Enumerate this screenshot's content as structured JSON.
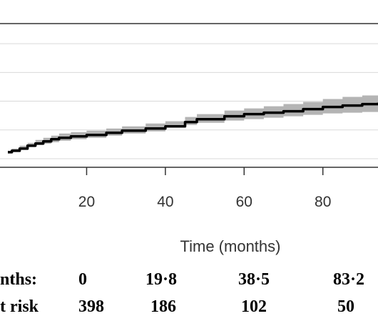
{
  "chart_data": {
    "type": "line",
    "title": "",
    "xlabel": "Time (months)",
    "ylabel": "",
    "xlim": [
      -2,
      94
    ],
    "ylim": [
      0,
      1
    ],
    "x_ticks": [
      20,
      40,
      60,
      80
    ],
    "x_tick_labels": [
      "20",
      "40",
      "60",
      "80"
    ],
    "grid": "horizontal",
    "y_gridlines": [
      0.06,
      0.26,
      0.46,
      0.66,
      0.86
    ],
    "series": [
      {
        "x": [
          0,
          1,
          3,
          5,
          7,
          9,
          11,
          13,
          16,
          20,
          25,
          29,
          35,
          40,
          45,
          48,
          55,
          60,
          65,
          70,
          75,
          80,
          85,
          90,
          94
        ],
        "y": [
          0.105,
          0.115,
          0.13,
          0.15,
          0.165,
          0.18,
          0.195,
          0.205,
          0.215,
          0.225,
          0.24,
          0.255,
          0.27,
          0.285,
          0.315,
          0.335,
          0.355,
          0.37,
          0.38,
          0.39,
          0.405,
          0.42,
          0.43,
          0.44,
          0.45
        ],
        "ci_lower": [
          0.095,
          0.1,
          0.11,
          0.125,
          0.14,
          0.155,
          0.165,
          0.175,
          0.185,
          0.195,
          0.205,
          0.22,
          0.235,
          0.25,
          0.28,
          0.295,
          0.31,
          0.325,
          0.335,
          0.345,
          0.355,
          0.365,
          0.375,
          0.38,
          0.385
        ],
        "ci_upper": [
          0.115,
          0.13,
          0.15,
          0.17,
          0.19,
          0.205,
          0.22,
          0.235,
          0.245,
          0.255,
          0.27,
          0.285,
          0.305,
          0.32,
          0.35,
          0.37,
          0.395,
          0.41,
          0.425,
          0.44,
          0.455,
          0.475,
          0.49,
          0.5,
          0.51
        ],
        "color": "#000000",
        "band_color": "#b4b4b4"
      }
    ],
    "risk_table": {
      "row_labels": [
        "nths:",
        "t risk"
      ],
      "columns": [
        {
          "months": "0",
          "at_risk": "398"
        },
        {
          "months": "19·8",
          "at_risk": "186"
        },
        {
          "months": "38·5",
          "at_risk": "102"
        },
        {
          "months": "83·2",
          "at_risk": "50"
        }
      ]
    }
  }
}
